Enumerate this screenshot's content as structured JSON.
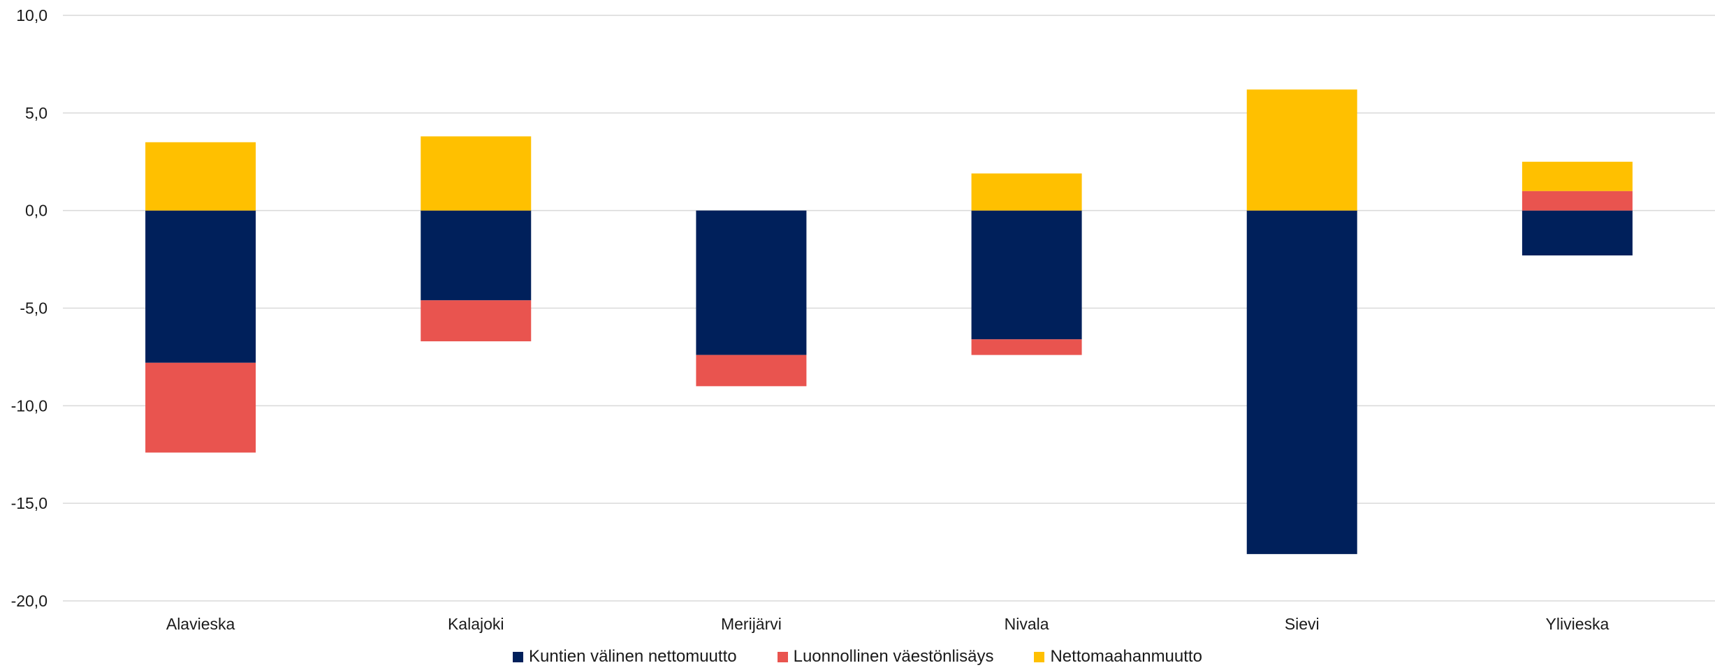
{
  "chart_data": {
    "type": "bar",
    "stacked": true,
    "categories": [
      "Alavieska",
      "Kalajoki",
      "Merijärvi",
      "Nivala",
      "Sievi",
      "Ylivieska"
    ],
    "series": [
      {
        "name": "Kuntien välinen nettomuutto",
        "color": "#00205b",
        "values": [
          -7.8,
          -4.6,
          -7.4,
          -6.6,
          -17.6,
          -2.3
        ]
      },
      {
        "name": "Luonnollinen väestönlisäys",
        "color": "#e9544f",
        "values": [
          -4.6,
          -2.1,
          -1.6,
          -0.8,
          0.0,
          1.0
        ]
      },
      {
        "name": "Nettomaahanmuutto",
        "color": "#ffc000",
        "values": [
          3.5,
          3.8,
          0.0,
          1.9,
          6.2,
          1.5
        ]
      }
    ],
    "ylim": [
      -20,
      10
    ],
    "yticks": [
      10,
      5,
      0,
      -5,
      -10,
      -15,
      -20
    ],
    "ytick_labels": [
      "10,0",
      "5,0",
      "0,0",
      "-5,0",
      "-10,0",
      "-15,0",
      "-20,0"
    ],
    "grid": true,
    "legend": "bottom-center"
  }
}
